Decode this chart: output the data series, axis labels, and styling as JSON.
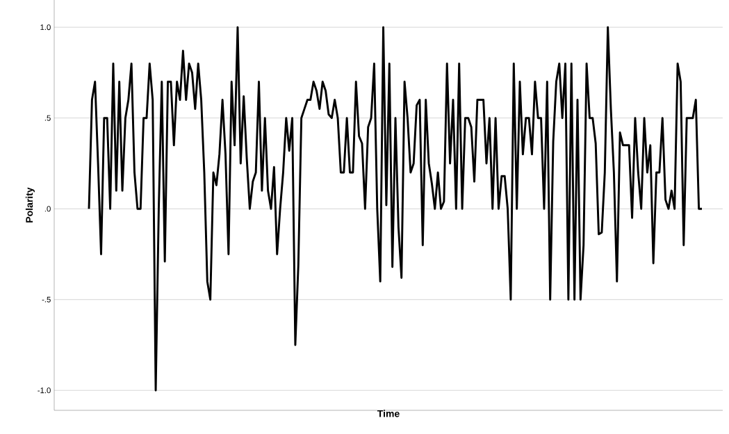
{
  "chart_data": {
    "type": "line",
    "xlabel": "Time",
    "ylabel": "Polarity",
    "categories": [
      null,
      null,
      null,
      null,
      null,
      null,
      null,
      null,
      null,
      null,
      null,
      null,
      null,
      null,
      null,
      null,
      null,
      null,
      null,
      null,
      null,
      null,
      null,
      null,
      null,
      null,
      null,
      null,
      null,
      null,
      null,
      null,
      null,
      null,
      null,
      null,
      null,
      null,
      null,
      null,
      null,
      null,
      null,
      null,
      null,
      null,
      null,
      null,
      null,
      null,
      null,
      null,
      null,
      null,
      null,
      null,
      null,
      null,
      null,
      null,
      null,
      null,
      null,
      null,
      null,
      null,
      null,
      null,
      null,
      null,
      null,
      null,
      null,
      null,
      null,
      null,
      null,
      null,
      null,
      null,
      null,
      null,
      null,
      null,
      null,
      null,
      null,
      null,
      null,
      null,
      null,
      null,
      null,
      null,
      null,
      null,
      null,
      null,
      null,
      null,
      null,
      null,
      null,
      null,
      null,
      null,
      null,
      null,
      null,
      null,
      null,
      null,
      null,
      null,
      null,
      null,
      null,
      null,
      null,
      null,
      null,
      null,
      null,
      null,
      null,
      null,
      null,
      null,
      null,
      null,
      null,
      null,
      null,
      null,
      null,
      null,
      null,
      null,
      null,
      null,
      null,
      null,
      null,
      null,
      null,
      null,
      null,
      null,
      null,
      null,
      null,
      null,
      null,
      null,
      null,
      null,
      null,
      null,
      null,
      null,
      null,
      null,
      null,
      null,
      null,
      null,
      null,
      null,
      null,
      null,
      null,
      null,
      null,
      null,
      null,
      null,
      null,
      null,
      null,
      null,
      null,
      null,
      null,
      null,
      null,
      null,
      null,
      null,
      null,
      null,
      null,
      null,
      null,
      null,
      null,
      null,
      null,
      null,
      null,
      null,
      null,
      null,
      null
    ],
    "values": [
      0,
      0.6,
      0.7,
      0.25,
      -0.25,
      0.5,
      0.5,
      0,
      0.8,
      0.1,
      0.7,
      0.1,
      0.5,
      0.6,
      0.8,
      0.2,
      0,
      0,
      0.5,
      0.5,
      0.8,
      0.6,
      -1.0,
      0,
      0.7,
      -0.29,
      0.7,
      0.7,
      0.35,
      0.7,
      0.6,
      0.87,
      0.6,
      0.8,
      0.75,
      0.55,
      0.8,
      0.6,
      0.2,
      -0.4,
      -0.5,
      0.2,
      0.13,
      0.3,
      0.6,
      0.3,
      -0.25,
      0.7,
      0.35,
      1.0,
      0.25,
      0.62,
      0.28,
      0,
      0.15,
      0.2,
      0.7,
      0.1,
      0.5,
      0.1,
      0,
      0.23,
      -0.25,
      0,
      0.2,
      0.5,
      0.32,
      0.5,
      -0.75,
      -0.31,
      0.5,
      0.55,
      0.6,
      0.6,
      0.7,
      0.65,
      0.55,
      0.7,
      0.65,
      0.52,
      0.5,
      0.6,
      0.5,
      0.2,
      0.2,
      0.5,
      0.2,
      0.2,
      0.7,
      0.4,
      0.36,
      0,
      0.45,
      0.5,
      0.8,
      0,
      -0.4,
      1.0,
      0.02,
      0.8,
      -0.32,
      0.5,
      -0.1,
      -0.38,
      0.7,
      0.5,
      0.2,
      0.25,
      0.57,
      0.6,
      -0.2,
      0.6,
      0.25,
      0.14,
      0,
      0.2,
      0,
      0.04,
      0.8,
      0.25,
      0.6,
      0,
      0.8,
      0,
      0.5,
      0.5,
      0.45,
      0.15,
      0.6,
      0.6,
      0.6,
      0.25,
      0.5,
      0,
      0.5,
      0,
      0.18,
      0.18,
      0,
      -0.5,
      0.8,
      0,
      0.7,
      0.3,
      0.5,
      0.5,
      0.3,
      0.7,
      0.5,
      0.5,
      0,
      0.7,
      -0.5,
      0.37,
      0.7,
      0.8,
      0.5,
      0.8,
      -0.5,
      0.8,
      -0.5,
      0.6,
      -0.5,
      -0.2,
      0.8,
      0.5,
      0.5,
      0.36,
      -0.14,
      -0.13,
      0.2,
      1.0,
      0.55,
      0.2,
      -0.4,
      0.42,
      0.35,
      0.35,
      0.35,
      -0.05,
      0.5,
      0.2,
      0,
      0.5,
      0.2,
      0.35,
      -0.3,
      0.2,
      0.2,
      0.5,
      0.05,
      0,
      0.1,
      0,
      0.8,
      0.7,
      -0.2,
      0.5,
      0.5,
      0.5,
      0.6,
      0,
      0
    ],
    "color": "#000000",
    "ylim": [
      -1.11,
      1.15
    ],
    "yticks": [
      {
        "value": -1,
        "label": "-1.0"
      },
      {
        "value": -0.5,
        "label": "-.5"
      },
      {
        "value": 0,
        "label": ".0"
      },
      {
        "value": 0.5,
        "label": ".5"
      },
      {
        "value": 1,
        "label": "1.0"
      }
    ],
    "grid": "y",
    "marker": "none",
    "line_style": "solid"
  }
}
